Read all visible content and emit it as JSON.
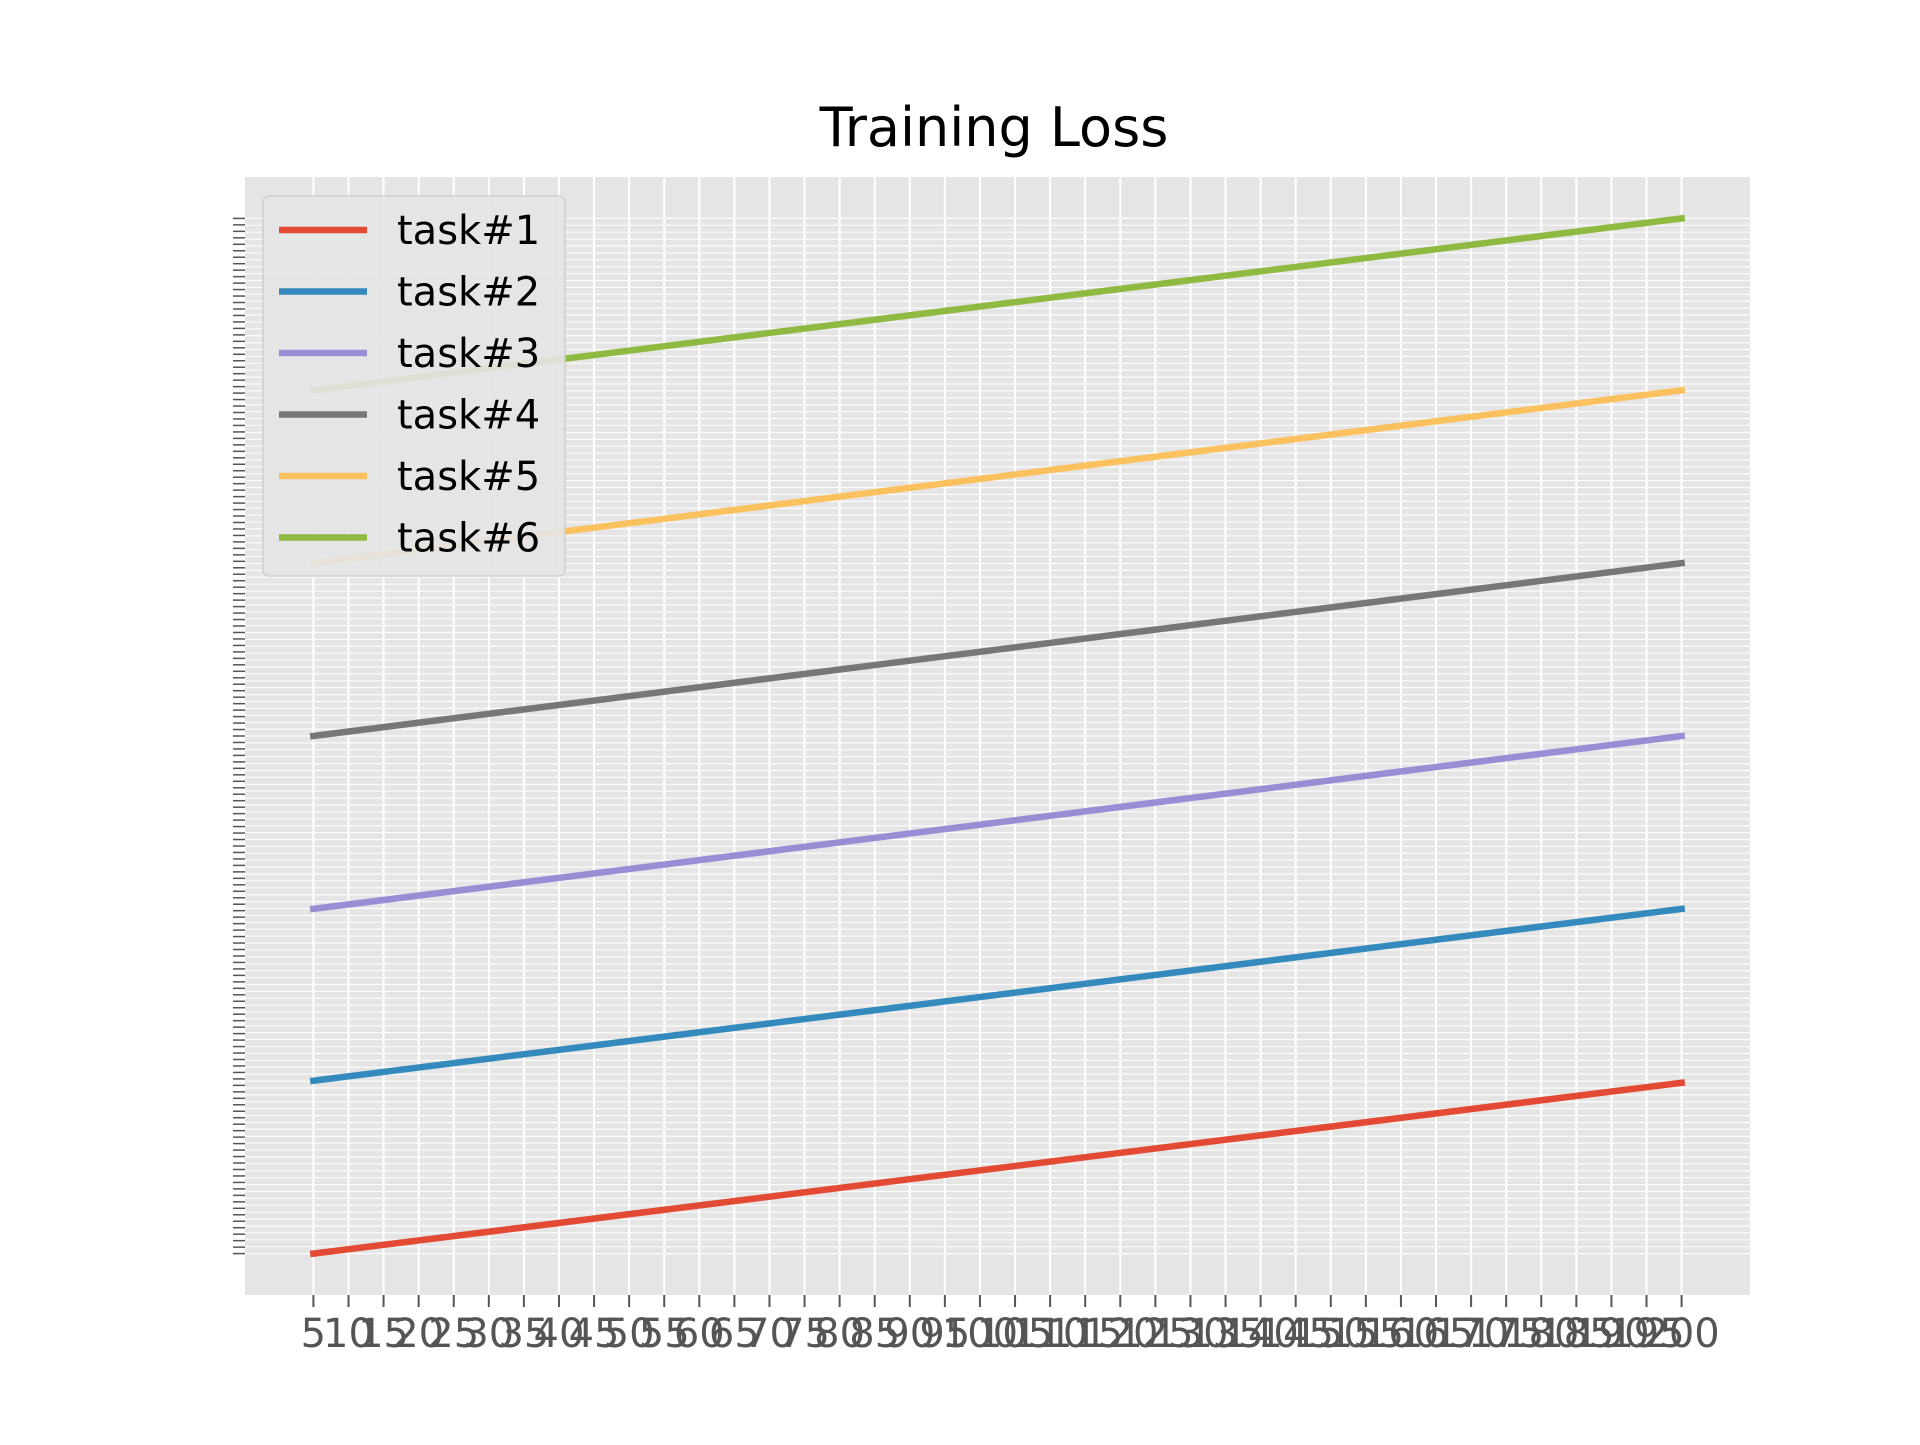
{
  "chart_data": {
    "type": "line",
    "title": "Training Loss",
    "xlabel": "",
    "ylabel": "",
    "x": [
      5,
      10,
      15,
      20,
      25,
      30,
      35,
      40,
      45,
      50,
      55,
      60,
      65,
      70,
      75,
      80,
      85,
      90,
      95,
      100,
      105,
      110,
      115,
      120,
      125,
      130,
      135,
      140,
      145,
      150,
      155,
      160,
      165,
      170,
      175,
      180,
      185,
      190,
      195,
      200
    ],
    "x_tick_labels": [
      "5",
      "10",
      "15",
      "20",
      "25",
      "30",
      "35",
      "40",
      "45",
      "50",
      "55",
      "60",
      "65",
      "70",
      "75",
      "80",
      "85",
      "90",
      "95",
      "100",
      "105",
      "110",
      "115",
      "120",
      "125",
      "130",
      "135",
      "140",
      "145",
      "150",
      "155",
      "160",
      "165",
      "170",
      "175",
      "180",
      "185",
      "190",
      "195",
      "200"
    ],
    "xlim": [
      -4.75,
      209.75
    ],
    "ylim": [
      -0.04,
      1.04
    ],
    "y_axis_note": "y tick labels overlap and are illegible in the original",
    "grid": true,
    "legend_position": "top-left",
    "series": [
      {
        "name": "task#1",
        "color": "#E24A33",
        "start": 0.0,
        "end": 0.165
      },
      {
        "name": "task#2",
        "color": "#348ABD",
        "start": 0.167,
        "end": 0.333
      },
      {
        "name": "task#3",
        "color": "#988ED5",
        "start": 0.333,
        "end": 0.5
      },
      {
        "name": "task#4",
        "color": "#777777",
        "start": 0.5,
        "end": 0.667
      },
      {
        "name": "task#5",
        "color": "#FBC15E",
        "start": 0.667,
        "end": 0.834
      },
      {
        "name": "task#6",
        "color": "#8EBA42",
        "start": 0.834,
        "end": 1.0
      }
    ]
  },
  "colors": {
    "axes_background": "#E5E5E5",
    "grid": "#FFFFFF",
    "tick_text": "#555555",
    "title_text": "#000000"
  }
}
